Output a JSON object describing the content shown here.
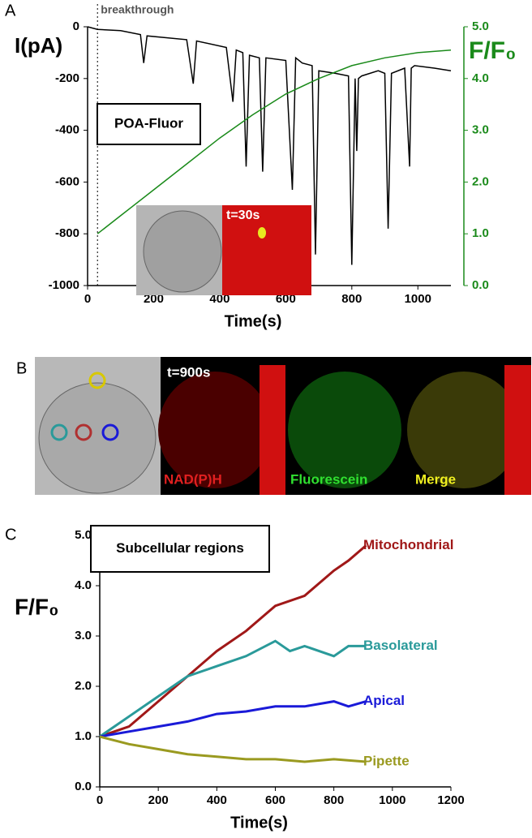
{
  "chart_data": [
    {
      "type": "line",
      "panel_label": "A",
      "xlabel": "Time(s)",
      "ylabel": "I(pA)",
      "y2label": "F/F₀",
      "annotation": {
        "text": "breakthrough",
        "x": 30
      },
      "box_label": "POA-Fluor",
      "inset_label": "t=30s",
      "xlim": [
        0,
        1100
      ],
      "xticks": [
        0,
        200,
        400,
        600,
        800,
        1000
      ],
      "ylim": [
        -1000,
        0
      ],
      "yticks": [
        -1000,
        -800,
        -600,
        -400,
        -200,
        0
      ],
      "y2lim": [
        0,
        5
      ],
      "y2ticks": [
        {
          "value": 0,
          "label": "0.0"
        },
        {
          "value": 1,
          "label": "1.0"
        },
        {
          "value": 2,
          "label": "2.0"
        },
        {
          "value": 3,
          "label": "3.0"
        },
        {
          "value": 4,
          "label": "4.0"
        },
        {
          "value": 5,
          "label": "5.0"
        }
      ],
      "y2color": "#1a8a1a",
      "series": [
        {
          "color": "#000000",
          "x": [
            0,
            30,
            100,
            160,
            170,
            180,
            300,
            320,
            330,
            420,
            440,
            450,
            470,
            480,
            490,
            520,
            530,
            540,
            600,
            620,
            630,
            650,
            680,
            690,
            700,
            750,
            790,
            800,
            810,
            815,
            820,
            830,
            880,
            900,
            910,
            920,
            960,
            975,
            980,
            990,
            1050,
            1100
          ],
          "values": [
            0,
            -10,
            -15,
            -30,
            -140,
            -35,
            -50,
            -220,
            -55,
            -80,
            -290,
            -90,
            -100,
            -540,
            -110,
            -120,
            -560,
            -120,
            -130,
            -630,
            -120,
            -140,
            -150,
            -880,
            -170,
            -180,
            -190,
            -920,
            -200,
            -480,
            -200,
            -190,
            -170,
            -180,
            -780,
            -180,
            -160,
            -540,
            -160,
            -150,
            -160,
            -170
          ]
        },
        {
          "color": "#1a8a1a",
          "axis": "y2",
          "x": [
            30,
            100,
            200,
            300,
            400,
            500,
            600,
            700,
            800,
            900,
            1000,
            1100
          ],
          "values": [
            1.0,
            1.35,
            1.85,
            2.35,
            2.85,
            3.3,
            3.7,
            4.0,
            4.25,
            4.4,
            4.5,
            4.55
          ]
        }
      ]
    },
    {
      "type": "line",
      "panel_label": "C",
      "xlabel": "Time(s)",
      "ylabel": "F/F₀",
      "box_label": "Subcellular regions",
      "xlim": [
        0,
        1200
      ],
      "xticks": [
        0,
        200,
        400,
        600,
        800,
        1000,
        1200
      ],
      "ylim": [
        0,
        5
      ],
      "yticks": [
        {
          "value": 0,
          "label": "0.0"
        },
        {
          "value": 1,
          "label": "1.0"
        },
        {
          "value": 2,
          "label": "2.0"
        },
        {
          "value": 3,
          "label": "3.0"
        },
        {
          "value": 4,
          "label": "4.0"
        },
        {
          "value": 5,
          "label": "5.0"
        }
      ],
      "series": [
        {
          "name": "Mitochondrial",
          "color": "#a01818",
          "x": [
            0,
            100,
            200,
            300,
            400,
            500,
            600,
            700,
            800,
            850,
            910
          ],
          "values": [
            1.0,
            1.2,
            1.7,
            2.2,
            2.7,
            3.1,
            3.6,
            3.8,
            4.3,
            4.5,
            4.8
          ]
        },
        {
          "name": "Basolateral",
          "color": "#2a9a9a",
          "x": [
            0,
            100,
            200,
            300,
            400,
            500,
            600,
            650,
            700,
            800,
            850,
            910
          ],
          "values": [
            1.0,
            1.4,
            1.8,
            2.2,
            2.4,
            2.6,
            2.9,
            2.7,
            2.8,
            2.6,
            2.8,
            2.8
          ]
        },
        {
          "name": "Apical",
          "color": "#1a1ad8",
          "x": [
            0,
            100,
            200,
            300,
            400,
            500,
            600,
            700,
            800,
            850,
            910
          ],
          "values": [
            1.0,
            1.1,
            1.2,
            1.3,
            1.45,
            1.5,
            1.6,
            1.6,
            1.7,
            1.6,
            1.7
          ]
        },
        {
          "name": "Pipette",
          "color": "#9a9a20",
          "x": [
            0,
            100,
            200,
            300,
            400,
            500,
            600,
            700,
            800,
            910
          ],
          "values": [
            1.0,
            0.85,
            0.75,
            0.65,
            0.6,
            0.55,
            0.55,
            0.5,
            0.55,
            0.5
          ]
        }
      ]
    }
  ],
  "images": {
    "label": "B",
    "time": "t=900s",
    "channels": [
      "NAD(P)H",
      "Fluorescein",
      "Merge"
    ]
  }
}
